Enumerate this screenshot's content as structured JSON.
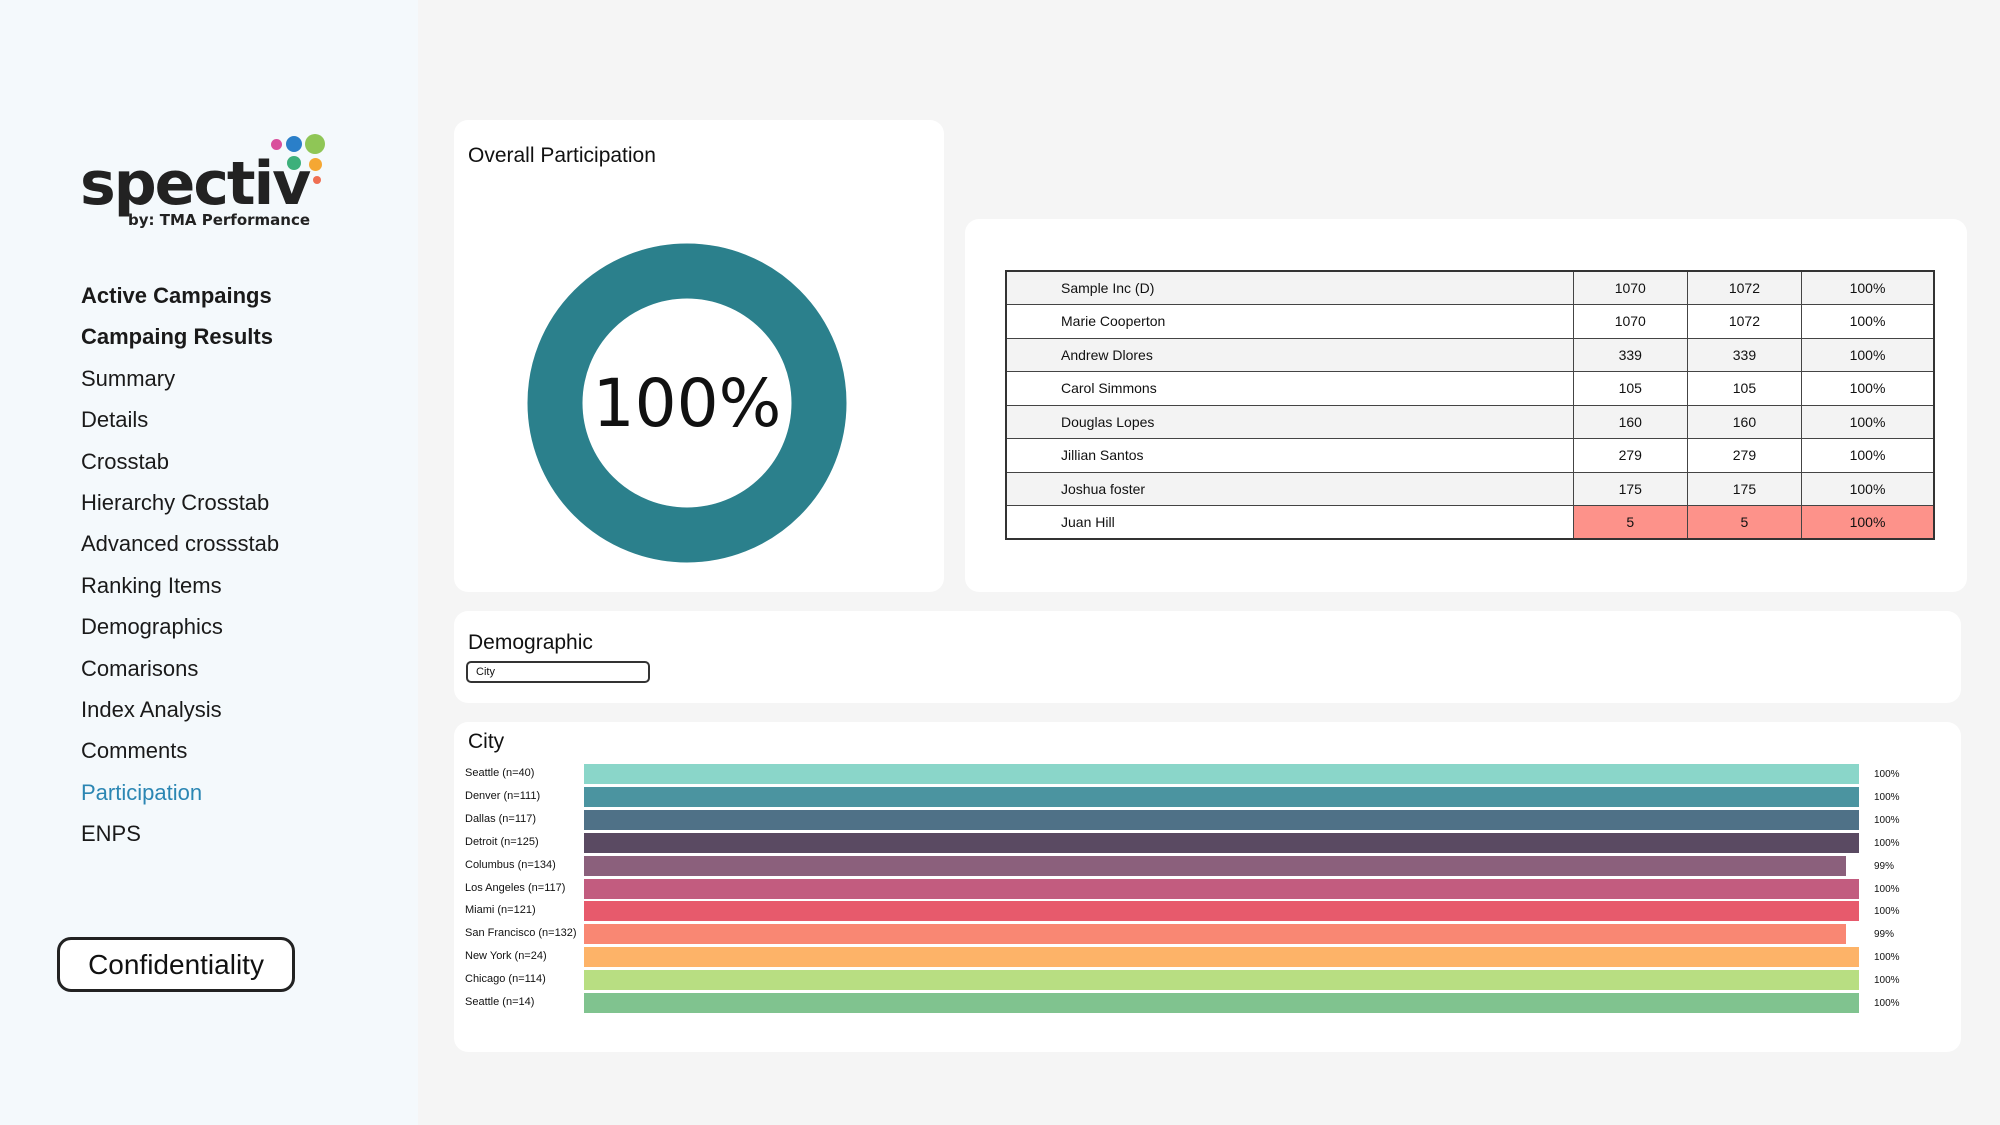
{
  "brand": {
    "logo_word": "spectiv",
    "logo_sub": "by: TMA Performance"
  },
  "sidebar": {
    "items": [
      {
        "label": "Active Campaings",
        "bold": true
      },
      {
        "label": "Campaing Results",
        "bold": true
      },
      {
        "label": "Summary"
      },
      {
        "label": "Details"
      },
      {
        "label": "Crosstab"
      },
      {
        "label": "Hierarchy Crosstab"
      },
      {
        "label": "Advanced crossstab"
      },
      {
        "label": "Ranking Items"
      },
      {
        "label": "Demographics"
      },
      {
        "label": "Comarisons"
      },
      {
        "label": "Index Analysis"
      },
      {
        "label": "Comments"
      },
      {
        "label": "Participation",
        "active": true
      },
      {
        "label": "ENPS"
      }
    ],
    "confidentiality_label": "Confidentiality"
  },
  "overall": {
    "title": "Overall Participation",
    "value_label": "100%",
    "value": 1.0,
    "color": "#2b808c"
  },
  "participation_table": {
    "rows": [
      {
        "name": "Sample Inc (D)",
        "a": "1070",
        "b": "1072",
        "pct": "100%"
      },
      {
        "name": "Marie Cooperton",
        "a": "1070",
        "b": "1072",
        "pct": "100%"
      },
      {
        "name": "Andrew Dlores",
        "a": "339",
        "b": "339",
        "pct": "100%"
      },
      {
        "name": "Carol Simmons",
        "a": "105",
        "b": "105",
        "pct": "100%"
      },
      {
        "name": "Douglas Lopes",
        "a": "160",
        "b": "160",
        "pct": "100%"
      },
      {
        "name": "Jillian Santos",
        "a": "279",
        "b": "279",
        "pct": "100%"
      },
      {
        "name": "Joshua foster",
        "a": "175",
        "b": "175",
        "pct": "100%"
      },
      {
        "name": "Juan Hill",
        "a": "5",
        "b": "5",
        "pct": "100%",
        "highlight": true
      }
    ],
    "highlight_color": "#fd928a"
  },
  "demographic": {
    "title": "Demographic",
    "select_value": "City"
  },
  "chart_data": {
    "type": "bar",
    "orientation": "horizontal",
    "title": "City",
    "categories": [
      "Seattle (n=40)",
      "Denver (n=111)",
      "Dallas (n=117)",
      "Detroit (n=125)",
      "Columbus (n=134)",
      "Los Angeles (n=117)",
      "Miami (n=121)",
      "San Francisco (n=132)",
      "New York (n=24)",
      "Chicago (n=114)",
      "Seattle (n=14)"
    ],
    "values": [
      100,
      100,
      100,
      100,
      99,
      100,
      100,
      99,
      100,
      100,
      100
    ],
    "value_labels": [
      "100%",
      "100%",
      "100%",
      "100%",
      "99%",
      "100%",
      "100%",
      "99%",
      "100%",
      "100%",
      "100%"
    ],
    "colors": [
      "#8ad6c9",
      "#4b94a0",
      "#4f7187",
      "#5a4a62",
      "#8b607c",
      "#c25c7f",
      "#e75a6c",
      "#f98773",
      "#fdb368",
      "#b8de82",
      "#80c38f"
    ],
    "xlim": [
      0,
      100
    ]
  }
}
